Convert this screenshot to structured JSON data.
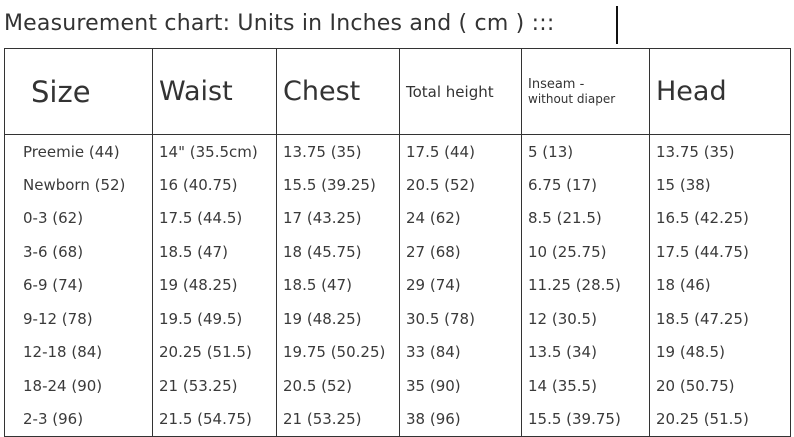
{
  "title": "Measurement chart:  Units in Inches and ( cm ) :::",
  "headers": {
    "size": "Size",
    "waist": "Waist",
    "chest": "Chest",
    "total_height": "Total height",
    "inseam": "Inseam -",
    "inseam_sub": "without diaper",
    "head": "Head"
  },
  "rows": [
    {
      "size": "Preemie (44)",
      "waist": "14\" (35.5cm)",
      "chest": "13.75 (35)",
      "total_height": "17.5 (44)",
      "inseam": "5 (13)",
      "head": "13.75 (35)"
    },
    {
      "size": "Newborn (52)",
      "waist": "16 (40.75)",
      "chest": "15.5 (39.25)",
      "total_height": "20.5 (52)",
      "inseam": "6.75 (17)",
      "head": "15 (38)"
    },
    {
      "size": "0-3 (62)",
      "waist": "17.5 (44.5)",
      "chest": "17 (43.25)",
      "total_height": "24 (62)",
      "inseam": "8.5 (21.5)",
      "head": "16.5 (42.25)"
    },
    {
      "size": "3-6 (68)",
      "waist": "18.5 (47)",
      "chest": "18 (45.75)",
      "total_height": "27 (68)",
      "inseam": "10 (25.75)",
      "head": "17.5 (44.75)"
    },
    {
      "size": "6-9 (74)",
      "waist": "19 (48.25)",
      "chest": "18.5 (47)",
      "total_height": "29 (74)",
      "inseam": "11.25 (28.5)",
      "head": "18 (46)"
    },
    {
      "size": "9-12 (78)",
      "waist": "19.5 (49.5)",
      "chest": "19 (48.25)",
      "total_height": "30.5 (78)",
      "inseam": "12 (30.5)",
      "head": "18.5 (47.25)"
    },
    {
      "size": "12-18 (84)",
      "waist": "20.25 (51.5)",
      "chest": "19.75 (50.25)",
      "total_height": "33 (84)",
      "inseam": "13.5 (34)",
      "head": "19 (48.5)"
    },
    {
      "size": "18-24 (90)",
      "waist": "21 (53.25)",
      "chest": "20.5 (52)",
      "total_height": "35 (90)",
      "inseam": "14 (35.5)",
      "head": "20 (50.75)"
    },
    {
      "size": "2-3 (96)",
      "waist": "21.5 (54.75)",
      "chest": "21 (53.25)",
      "total_height": "38 (96)",
      "inseam": "15.5 (39.75)",
      "head": "20.25 (51.5)"
    }
  ]
}
